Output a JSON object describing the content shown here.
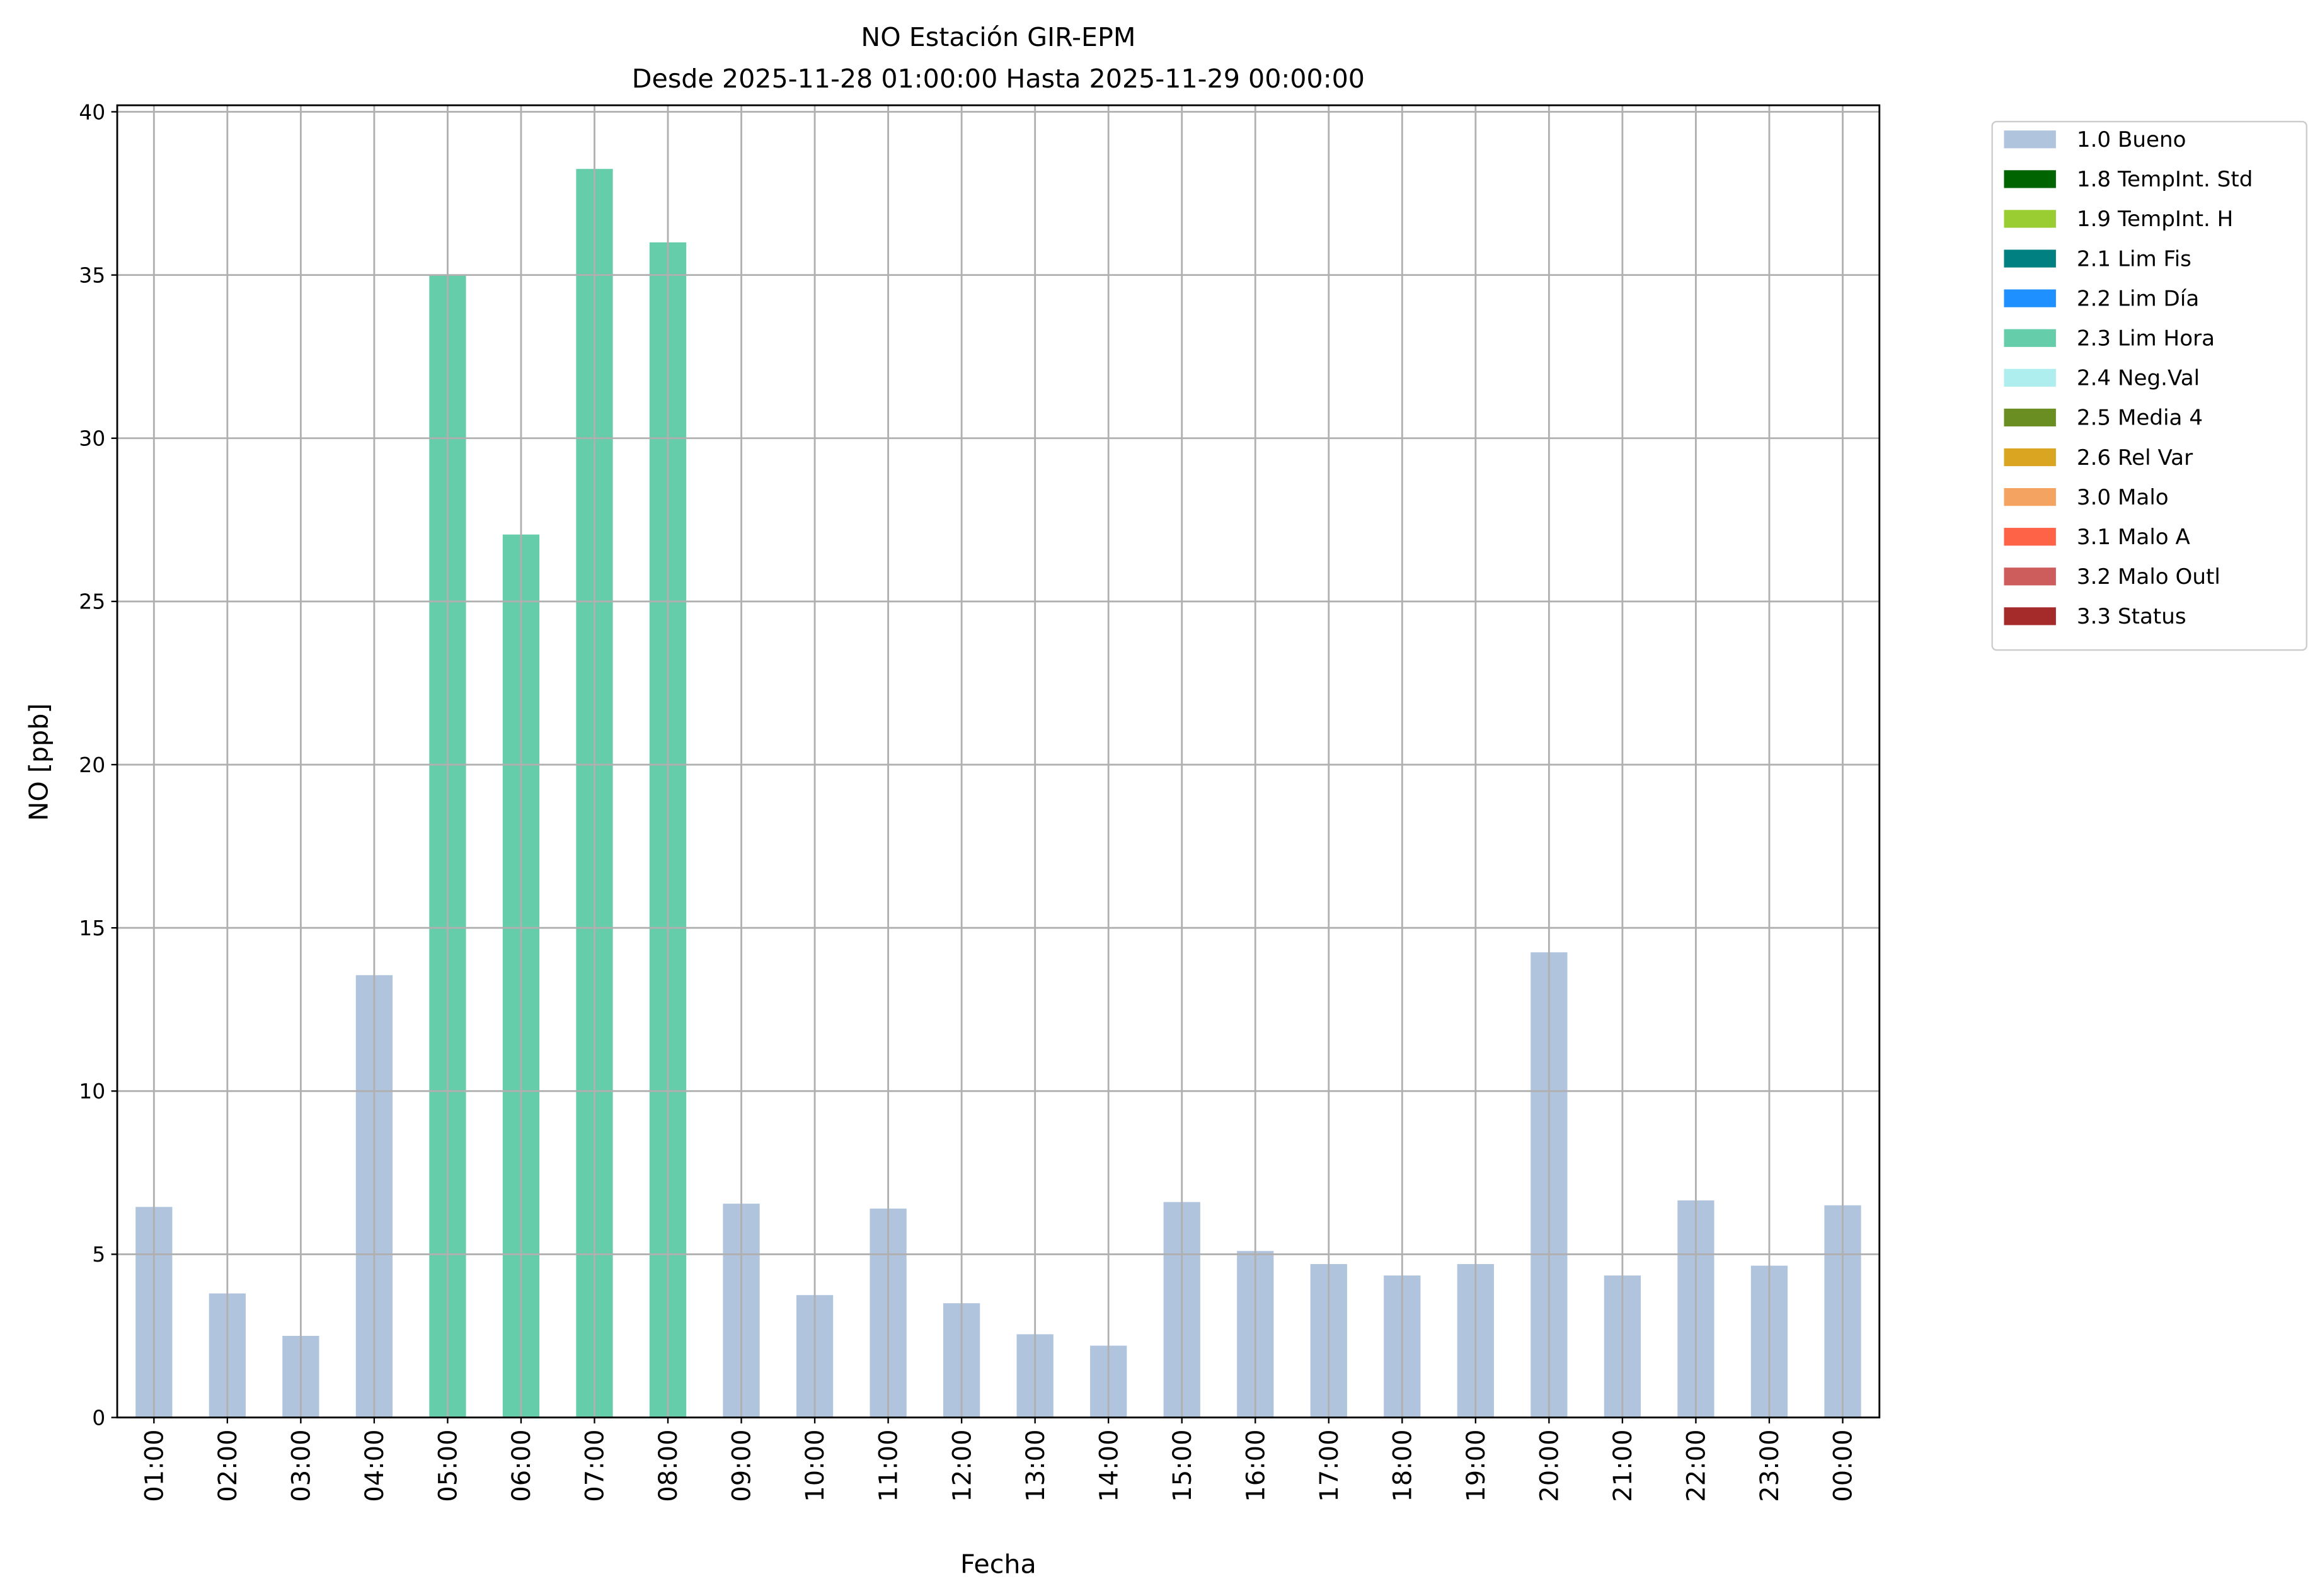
{
  "chart_data": {
    "type": "stacked_bar",
    "title": "NO Estación GIR-EPM",
    "subtitle": "Desde 2025-11-28 01:00:00 Hasta 2025-11-29 00:00:00",
    "x_label": "Fecha",
    "y_label": "NO [ppb]",
    "categories": [
      "01:00",
      "02:00",
      "03:00",
      "04:00",
      "05:00",
      "06:00",
      "07:00",
      "08:00",
      "09:00",
      "10:00",
      "11:00",
      "12:00",
      "13:00",
      "14:00",
      "15:00",
      "16:00",
      "17:00",
      "18:00",
      "19:00",
      "20:00",
      "21:00",
      "22:00",
      "23:00",
      "00:00"
    ],
    "series": [
      {
        "name": "1.0 Bueno",
        "color": "#b0c4de",
        "values": [
          6.45,
          3.8,
          2.5,
          13.55,
          null,
          null,
          null,
          null,
          6.55,
          3.75,
          6.4,
          3.5,
          2.55,
          2.2,
          6.6,
          5.1,
          4.7,
          4.35,
          4.7,
          14.25,
          4.35,
          6.65,
          4.65,
          6.5
        ]
      },
      {
        "name": "1.8 TempInt. Std",
        "color": "#006400",
        "values": [
          null,
          null,
          null,
          null,
          null,
          null,
          null,
          null,
          null,
          null,
          null,
          null,
          null,
          null,
          null,
          null,
          null,
          null,
          null,
          null,
          null,
          null,
          null,
          null
        ]
      },
      {
        "name": "1.9 TempInt. H",
        "color": "#9acd32",
        "values": [
          null,
          null,
          null,
          null,
          null,
          null,
          null,
          null,
          null,
          null,
          null,
          null,
          null,
          null,
          null,
          null,
          null,
          null,
          null,
          null,
          null,
          null,
          null,
          null
        ]
      },
      {
        "name": "2.1 Lim Fis",
        "color": "#008080",
        "values": [
          null,
          null,
          null,
          null,
          null,
          null,
          null,
          null,
          null,
          null,
          null,
          null,
          null,
          null,
          null,
          null,
          null,
          null,
          null,
          null,
          null,
          null,
          null,
          null
        ]
      },
      {
        "name": "2.2 Lim Día",
        "color": "#1e90ff",
        "values": [
          null,
          null,
          null,
          null,
          null,
          null,
          null,
          null,
          null,
          null,
          null,
          null,
          null,
          null,
          null,
          null,
          null,
          null,
          null,
          null,
          null,
          null,
          null,
          null
        ]
      },
      {
        "name": "2.3 Lim Hora",
        "color": "#66cdaa",
        "values": [
          null,
          null,
          null,
          null,
          35.0,
          27.05,
          38.25,
          36.0,
          null,
          null,
          null,
          null,
          null,
          null,
          null,
          null,
          null,
          null,
          null,
          null,
          null,
          null,
          null,
          null
        ]
      },
      {
        "name": "2.4 Neg.Val",
        "color": "#afeeee",
        "values": [
          null,
          null,
          null,
          null,
          null,
          null,
          null,
          null,
          null,
          null,
          null,
          null,
          null,
          null,
          null,
          null,
          null,
          null,
          null,
          null,
          null,
          null,
          null,
          null
        ]
      },
      {
        "name": "2.5 Media 4",
        "color": "#6b8e23",
        "values": [
          null,
          null,
          null,
          null,
          null,
          null,
          null,
          null,
          null,
          null,
          null,
          null,
          null,
          null,
          null,
          null,
          null,
          null,
          null,
          null,
          null,
          null,
          null,
          null
        ]
      },
      {
        "name": "2.6 Rel Var",
        "color": "#daa520",
        "values": [
          null,
          null,
          null,
          null,
          null,
          null,
          null,
          null,
          null,
          null,
          null,
          null,
          null,
          null,
          null,
          null,
          null,
          null,
          null,
          null,
          null,
          null,
          null,
          null
        ]
      },
      {
        "name": "3.0 Malo",
        "color": "#f4a460",
        "values": [
          null,
          null,
          null,
          null,
          null,
          null,
          null,
          null,
          null,
          null,
          null,
          null,
          null,
          null,
          null,
          null,
          null,
          null,
          null,
          null,
          null,
          null,
          null,
          null
        ]
      },
      {
        "name": "3.1 Malo A",
        "color": "#ff6347",
        "values": [
          null,
          null,
          null,
          null,
          null,
          null,
          null,
          null,
          null,
          null,
          null,
          null,
          null,
          null,
          null,
          null,
          null,
          null,
          null,
          null,
          null,
          null,
          null,
          null
        ]
      },
      {
        "name": "3.2 Malo Outl",
        "color": "#cd5c5c",
        "values": [
          null,
          null,
          null,
          null,
          null,
          null,
          null,
          null,
          null,
          null,
          null,
          null,
          null,
          null,
          null,
          null,
          null,
          null,
          null,
          null,
          null,
          null,
          null,
          null
        ]
      },
      {
        "name": "3.3 Status",
        "color": "#a52a2a",
        "values": [
          null,
          null,
          null,
          null,
          null,
          null,
          null,
          null,
          null,
          null,
          null,
          null,
          null,
          null,
          null,
          null,
          null,
          null,
          null,
          null,
          null,
          null,
          null,
          null
        ]
      }
    ],
    "ylim": [
      0,
      40.2
    ],
    "yticks": [
      0,
      5,
      10,
      15,
      20,
      25,
      30,
      35,
      40
    ],
    "grid": true,
    "legend": "outside-right"
  }
}
